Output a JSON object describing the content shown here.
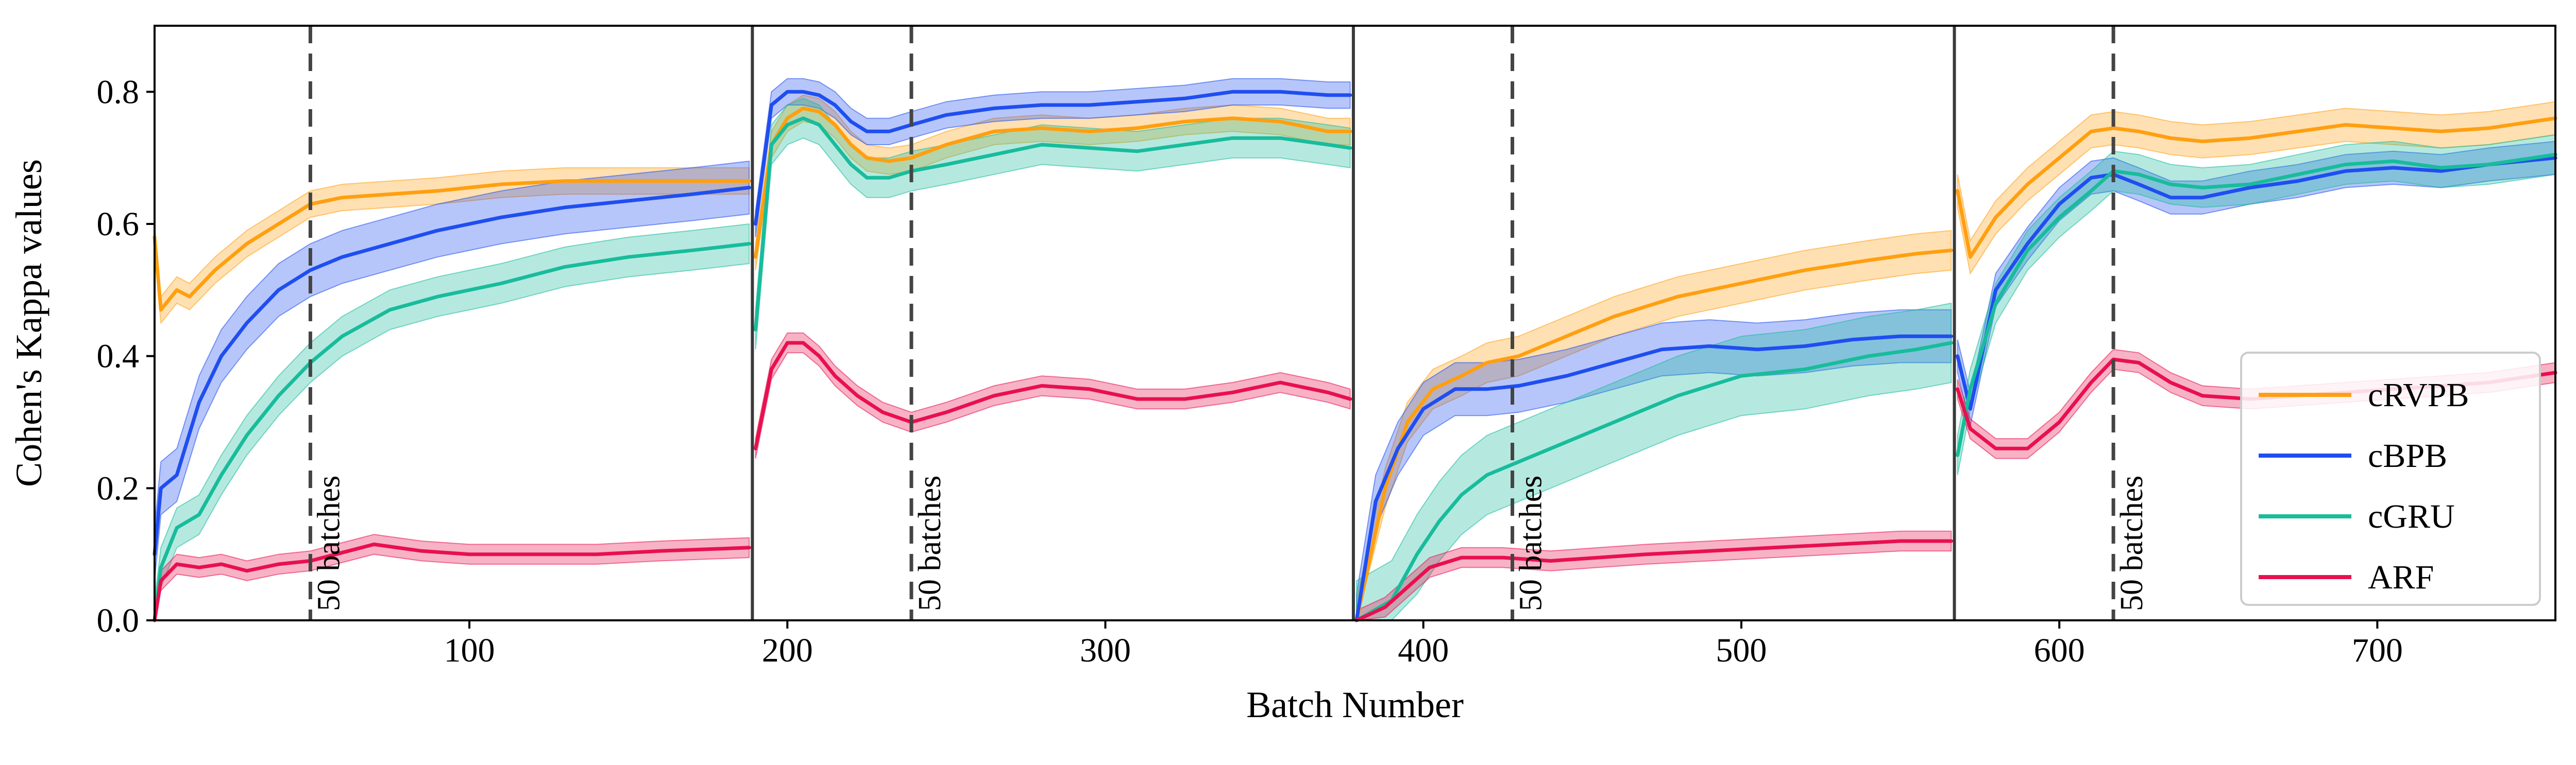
{
  "chart_data": {
    "type": "line",
    "title": "",
    "xlabel": "Batch Number",
    "ylabel": "Cohen's Kappa values",
    "xlim": [
      1,
      756
    ],
    "ylim": [
      0.0,
      0.9
    ],
    "x_ticks": [
      100,
      200,
      300,
      400,
      500,
      600,
      700
    ],
    "x_tick_labels": [
      "100",
      "200",
      "300",
      "400",
      "500",
      "600",
      "700"
    ],
    "y_ticks": [
      0.0,
      0.2,
      0.4,
      0.6,
      0.8
    ],
    "y_tick_labels": [
      "0.0",
      "0.2",
      "0.4",
      "0.6",
      "0.8"
    ],
    "grid": false,
    "legend_position": "bottom-right",
    "segment_boundaries": [
      189,
      378,
      567
    ],
    "markers": [
      {
        "x": 50,
        "label": "50 batches"
      },
      {
        "x": 239,
        "label": "50 batches"
      },
      {
        "x": 428,
        "label": "50 batches"
      },
      {
        "x": 617,
        "label": "50 batches"
      }
    ],
    "series": [
      {
        "name": "cRVPB",
        "color": "#ff9f10",
        "band_halfwidth": [
          0.02,
          0.02,
          0.03,
          0.025
        ],
        "points": [
          [
            1,
            0.58
          ],
          [
            3,
            0.47
          ],
          [
            8,
            0.5
          ],
          [
            12,
            0.49
          ],
          [
            20,
            0.53
          ],
          [
            30,
            0.57
          ],
          [
            40,
            0.6
          ],
          [
            50,
            0.63
          ],
          [
            60,
            0.64
          ],
          [
            75,
            0.645
          ],
          [
            90,
            0.65
          ],
          [
            110,
            0.66
          ],
          [
            130,
            0.665
          ],
          [
            150,
            0.665
          ],
          [
            170,
            0.665
          ],
          [
            188,
            0.665
          ],
          [
            190,
            0.55
          ],
          [
            195,
            0.72
          ],
          [
            200,
            0.76
          ],
          [
            205,
            0.775
          ],
          [
            210,
            0.77
          ],
          [
            215,
            0.75
          ],
          [
            220,
            0.72
          ],
          [
            225,
            0.7
          ],
          [
            232,
            0.695
          ],
          [
            239,
            0.7
          ],
          [
            250,
            0.72
          ],
          [
            265,
            0.74
          ],
          [
            280,
            0.745
          ],
          [
            295,
            0.74
          ],
          [
            310,
            0.745
          ],
          [
            325,
            0.755
          ],
          [
            340,
            0.76
          ],
          [
            355,
            0.755
          ],
          [
            370,
            0.74
          ],
          [
            377,
            0.74
          ],
          [
            379,
            0.0
          ],
          [
            388,
            0.2
          ],
          [
            395,
            0.3
          ],
          [
            403,
            0.35
          ],
          [
            412,
            0.37
          ],
          [
            420,
            0.39
          ],
          [
            430,
            0.4
          ],
          [
            445,
            0.43
          ],
          [
            460,
            0.46
          ],
          [
            480,
            0.49
          ],
          [
            500,
            0.51
          ],
          [
            520,
            0.53
          ],
          [
            540,
            0.545
          ],
          [
            555,
            0.555
          ],
          [
            566,
            0.56
          ],
          [
            568,
            0.65
          ],
          [
            572,
            0.55
          ],
          [
            580,
            0.61
          ],
          [
            590,
            0.66
          ],
          [
            600,
            0.7
          ],
          [
            610,
            0.74
          ],
          [
            617,
            0.745
          ],
          [
            625,
            0.74
          ],
          [
            635,
            0.73
          ],
          [
            645,
            0.725
          ],
          [
            660,
            0.73
          ],
          [
            675,
            0.74
          ],
          [
            690,
            0.75
          ],
          [
            705,
            0.745
          ],
          [
            720,
            0.74
          ],
          [
            735,
            0.745
          ],
          [
            756,
            0.76
          ]
        ]
      },
      {
        "name": "cBPB",
        "color": "#1f4ef0",
        "band_halfwidth": [
          0.04,
          0.02,
          0.04,
          0.025
        ],
        "points": [
          [
            1,
            0.1
          ],
          [
            3,
            0.2
          ],
          [
            8,
            0.22
          ],
          [
            15,
            0.33
          ],
          [
            22,
            0.4
          ],
          [
            30,
            0.45
          ],
          [
            40,
            0.5
          ],
          [
            50,
            0.53
          ],
          [
            60,
            0.55
          ],
          [
            75,
            0.57
          ],
          [
            90,
            0.59
          ],
          [
            110,
            0.61
          ],
          [
            130,
            0.625
          ],
          [
            150,
            0.635
          ],
          [
            170,
            0.645
          ],
          [
            188,
            0.655
          ],
          [
            190,
            0.6
          ],
          [
            195,
            0.78
          ],
          [
            200,
            0.8
          ],
          [
            205,
            0.8
          ],
          [
            210,
            0.795
          ],
          [
            215,
            0.78
          ],
          [
            220,
            0.755
          ],
          [
            225,
            0.74
          ],
          [
            232,
            0.74
          ],
          [
            239,
            0.75
          ],
          [
            250,
            0.765
          ],
          [
            265,
            0.775
          ],
          [
            280,
            0.78
          ],
          [
            295,
            0.78
          ],
          [
            310,
            0.785
          ],
          [
            325,
            0.79
          ],
          [
            340,
            0.8
          ],
          [
            355,
            0.8
          ],
          [
            370,
            0.795
          ],
          [
            377,
            0.795
          ],
          [
            379,
            0.0
          ],
          [
            385,
            0.18
          ],
          [
            392,
            0.26
          ],
          [
            400,
            0.32
          ],
          [
            410,
            0.35
          ],
          [
            420,
            0.35
          ],
          [
            430,
            0.355
          ],
          [
            445,
            0.37
          ],
          [
            460,
            0.39
          ],
          [
            475,
            0.41
          ],
          [
            490,
            0.415
          ],
          [
            505,
            0.41
          ],
          [
            520,
            0.415
          ],
          [
            535,
            0.425
          ],
          [
            550,
            0.43
          ],
          [
            566,
            0.43
          ],
          [
            568,
            0.4
          ],
          [
            572,
            0.32
          ],
          [
            580,
            0.5
          ],
          [
            590,
            0.57
          ],
          [
            600,
            0.63
          ],
          [
            610,
            0.67
          ],
          [
            617,
            0.675
          ],
          [
            625,
            0.66
          ],
          [
            635,
            0.64
          ],
          [
            645,
            0.64
          ],
          [
            660,
            0.655
          ],
          [
            675,
            0.665
          ],
          [
            690,
            0.68
          ],
          [
            705,
            0.685
          ],
          [
            720,
            0.68
          ],
          [
            735,
            0.69
          ],
          [
            756,
            0.7
          ]
        ]
      },
      {
        "name": "cGRU",
        "color": "#18bc9c",
        "band_halfwidth": [
          0.03,
          0.03,
          0.06,
          0.03
        ],
        "points": [
          [
            1,
            0.0
          ],
          [
            3,
            0.08
          ],
          [
            8,
            0.14
          ],
          [
            15,
            0.16
          ],
          [
            22,
            0.22
          ],
          [
            30,
            0.28
          ],
          [
            40,
            0.34
          ],
          [
            50,
            0.39
          ],
          [
            60,
            0.43
          ],
          [
            75,
            0.47
          ],
          [
            90,
            0.49
          ],
          [
            110,
            0.51
          ],
          [
            130,
            0.535
          ],
          [
            150,
            0.55
          ],
          [
            170,
            0.56
          ],
          [
            188,
            0.57
          ],
          [
            190,
            0.44
          ],
          [
            195,
            0.72
          ],
          [
            200,
            0.75
          ],
          [
            205,
            0.76
          ],
          [
            210,
            0.75
          ],
          [
            215,
            0.72
          ],
          [
            220,
            0.69
          ],
          [
            225,
            0.67
          ],
          [
            232,
            0.67
          ],
          [
            239,
            0.68
          ],
          [
            250,
            0.69
          ],
          [
            265,
            0.705
          ],
          [
            280,
            0.72
          ],
          [
            295,
            0.715
          ],
          [
            310,
            0.71
          ],
          [
            325,
            0.72
          ],
          [
            340,
            0.73
          ],
          [
            355,
            0.73
          ],
          [
            370,
            0.72
          ],
          [
            377,
            0.715
          ],
          [
            379,
            0.0
          ],
          [
            390,
            0.03
          ],
          [
            398,
            0.1
          ],
          [
            405,
            0.15
          ],
          [
            412,
            0.19
          ],
          [
            420,
            0.22
          ],
          [
            430,
            0.24
          ],
          [
            445,
            0.27
          ],
          [
            460,
            0.3
          ],
          [
            480,
            0.34
          ],
          [
            500,
            0.37
          ],
          [
            520,
            0.38
          ],
          [
            540,
            0.4
          ],
          [
            555,
            0.41
          ],
          [
            566,
            0.42
          ],
          [
            568,
            0.25
          ],
          [
            572,
            0.35
          ],
          [
            580,
            0.48
          ],
          [
            590,
            0.56
          ],
          [
            600,
            0.61
          ],
          [
            610,
            0.65
          ],
          [
            617,
            0.68
          ],
          [
            625,
            0.675
          ],
          [
            635,
            0.66
          ],
          [
            645,
            0.655
          ],
          [
            660,
            0.66
          ],
          [
            675,
            0.675
          ],
          [
            690,
            0.69
          ],
          [
            705,
            0.695
          ],
          [
            720,
            0.685
          ],
          [
            735,
            0.69
          ],
          [
            756,
            0.705
          ]
        ]
      },
      {
        "name": "ARF",
        "color": "#e8104f",
        "band_halfwidth": [
          0.015,
          0.015,
          0.015,
          0.015
        ],
        "points": [
          [
            1,
            0.0
          ],
          [
            3,
            0.06
          ],
          [
            8,
            0.085
          ],
          [
            15,
            0.08
          ],
          [
            22,
            0.085
          ],
          [
            30,
            0.075
          ],
          [
            40,
            0.085
          ],
          [
            50,
            0.09
          ],
          [
            58,
            0.1
          ],
          [
            70,
            0.115
          ],
          [
            85,
            0.105
          ],
          [
            100,
            0.1
          ],
          [
            120,
            0.1
          ],
          [
            140,
            0.1
          ],
          [
            160,
            0.105
          ],
          [
            188,
            0.11
          ],
          [
            190,
            0.26
          ],
          [
            195,
            0.38
          ],
          [
            200,
            0.42
          ],
          [
            205,
            0.42
          ],
          [
            210,
            0.4
          ],
          [
            215,
            0.37
          ],
          [
            222,
            0.34
          ],
          [
            230,
            0.315
          ],
          [
            239,
            0.3
          ],
          [
            250,
            0.315
          ],
          [
            265,
            0.34
          ],
          [
            280,
            0.355
          ],
          [
            295,
            0.35
          ],
          [
            310,
            0.335
          ],
          [
            325,
            0.335
          ],
          [
            340,
            0.345
          ],
          [
            355,
            0.36
          ],
          [
            370,
            0.345
          ],
          [
            377,
            0.335
          ],
          [
            379,
            0.0
          ],
          [
            388,
            0.02
          ],
          [
            395,
            0.05
          ],
          [
            402,
            0.08
          ],
          [
            412,
            0.095
          ],
          [
            425,
            0.095
          ],
          [
            440,
            0.09
          ],
          [
            455,
            0.095
          ],
          [
            470,
            0.1
          ],
          [
            490,
            0.105
          ],
          [
            510,
            0.11
          ],
          [
            530,
            0.115
          ],
          [
            550,
            0.12
          ],
          [
            566,
            0.12
          ],
          [
            568,
            0.35
          ],
          [
            572,
            0.29
          ],
          [
            580,
            0.26
          ],
          [
            590,
            0.26
          ],
          [
            600,
            0.3
          ],
          [
            610,
            0.36
          ],
          [
            617,
            0.395
          ],
          [
            625,
            0.39
          ],
          [
            635,
            0.36
          ],
          [
            645,
            0.34
          ],
          [
            660,
            0.335
          ],
          [
            675,
            0.34
          ],
          [
            690,
            0.345
          ],
          [
            705,
            0.35
          ],
          [
            720,
            0.355
          ],
          [
            735,
            0.36
          ],
          [
            756,
            0.375
          ]
        ]
      }
    ]
  }
}
